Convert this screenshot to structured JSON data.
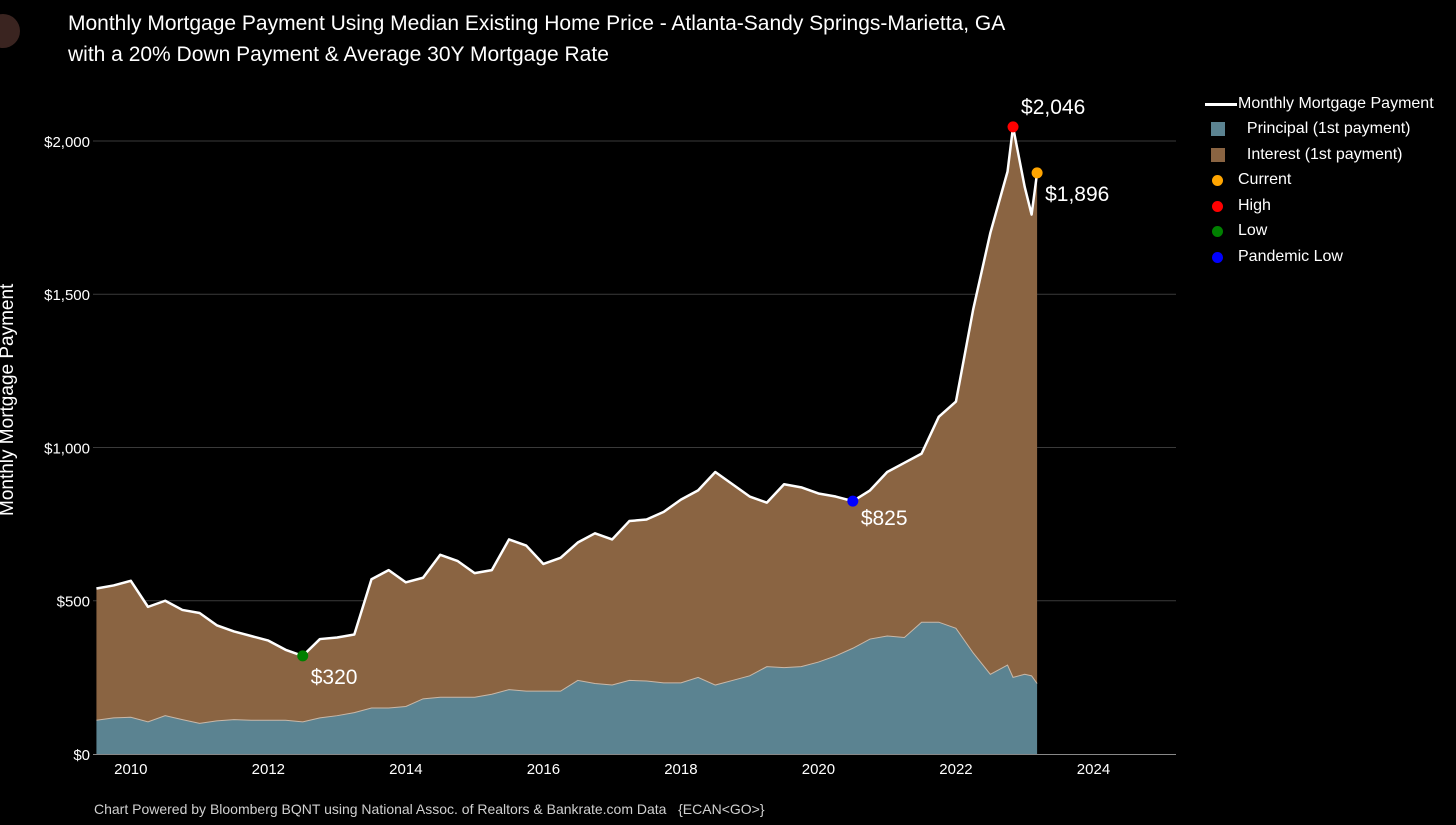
{
  "title_line1": "Monthly Mortgage Payment Using Median Existing Home Price - Atlanta-Sandy Springs-Marietta, GA",
  "title_line2": "with a 20% Down Payment & Average 30Y Mortgage Rate",
  "footer": "Chart Powered by Bloomberg BQNT using National Assoc. of Realtors & Bankrate.com Data   {ECAN<GO>}",
  "colors": {
    "principal": "#5b8391",
    "interest": "#8a6442",
    "payment_line": "#ffffff",
    "current": "#ffa500",
    "high": "#ff0000",
    "low": "#008000",
    "pandemic_low": "#0000ff",
    "grid": "#3a3a3a"
  },
  "legend": [
    {
      "label": "Monthly Mortgage Payment",
      "symbol": "line",
      "color": "#ffffff"
    },
    {
      "label": "  Principal (1st payment)",
      "symbol": "square",
      "color": "#5b8391"
    },
    {
      "label": "  Interest (1st payment)",
      "symbol": "square",
      "color": "#8a6442"
    },
    {
      "label": "Current",
      "symbol": "dot",
      "color": "#ffa500"
    },
    {
      "label": "High",
      "symbol": "dot",
      "color": "#ff0000"
    },
    {
      "label": "Low",
      "symbol": "dot",
      "color": "#008000"
    },
    {
      "label": "Pandemic Low",
      "symbol": "dot",
      "color": "#0000ff"
    }
  ],
  "chart_data": {
    "type": "area",
    "title": "Monthly Mortgage Payment Using Median Existing Home Price - Atlanta-Sandy Springs-Marietta, GA with a 20% Down Payment & Average 30Y Mortgage Rate",
    "xlabel": "",
    "ylabel": "Monthly Mortgage Payment",
    "xlim": [
      2009.45,
      2025.2
    ],
    "ylim": [
      0,
      2150
    ],
    "x_ticks": [
      2010,
      2012,
      2014,
      2016,
      2018,
      2020,
      2022,
      2024
    ],
    "x_tick_labels": [
      "2010",
      "2012",
      "2014",
      "2016",
      "2018",
      "2020",
      "2022",
      "2024"
    ],
    "y_ticks": [
      0,
      500,
      1000,
      1500,
      2000
    ],
    "y_tick_labels": [
      "$0",
      "$500",
      "$1,000",
      "$1,500",
      "$2,000"
    ],
    "grid": true,
    "legend_position": "top-right",
    "x": [
      2009.5,
      2009.75,
      2010.0,
      2010.25,
      2010.5,
      2010.75,
      2011.0,
      2011.25,
      2011.5,
      2011.75,
      2012.0,
      2012.25,
      2012.5,
      2012.75,
      2013.0,
      2013.25,
      2013.5,
      2013.75,
      2014.0,
      2014.25,
      2014.5,
      2014.75,
      2015.0,
      2015.25,
      2015.5,
      2015.75,
      2016.0,
      2016.25,
      2016.5,
      2016.75,
      2017.0,
      2017.25,
      2017.5,
      2017.75,
      2018.0,
      2018.25,
      2018.5,
      2018.75,
      2019.0,
      2019.25,
      2019.5,
      2019.75,
      2020.0,
      2020.25,
      2020.5,
      2020.75,
      2021.0,
      2021.25,
      2021.5,
      2021.75,
      2022.0,
      2022.25,
      2022.5,
      2022.75,
      2022.83,
      2023.0,
      2023.1,
      2023.18
    ],
    "series": [
      {
        "name": "Monthly Mortgage Payment",
        "values": [
          540,
          550,
          565,
          480,
          500,
          470,
          460,
          420,
          400,
          385,
          370,
          340,
          320,
          375,
          380,
          390,
          570,
          600,
          560,
          575,
          650,
          630,
          590,
          600,
          700,
          680,
          620,
          640,
          690,
          720,
          700,
          760,
          765,
          790,
          830,
          860,
          920,
          880,
          840,
          820,
          880,
          870,
          850,
          840,
          825,
          860,
          920,
          950,
          980,
          1100,
          1150,
          1450,
          1700,
          1900,
          2046,
          1850,
          1760,
          1896
        ]
      },
      {
        "name": "Principal (1st payment)",
        "values": [
          110,
          118,
          120,
          105,
          125,
          112,
          100,
          108,
          112,
          110,
          110,
          110,
          105,
          118,
          125,
          135,
          150,
          150,
          155,
          180,
          185,
          185,
          185,
          195,
          210,
          205,
          205,
          205,
          240,
          230,
          225,
          240,
          238,
          232,
          232,
          250,
          225,
          240,
          255,
          285,
          282,
          285,
          300,
          320,
          345,
          375,
          385,
          380,
          430,
          430,
          410,
          330,
          260,
          290,
          250,
          260,
          255,
          230
        ]
      },
      {
        "name": "Interest (1st payment)",
        "values": [
          430,
          432,
          445,
          375,
          375,
          358,
          360,
          312,
          288,
          275,
          260,
          230,
          215,
          257,
          255,
          255,
          420,
          450,
          405,
          395,
          465,
          445,
          405,
          405,
          490,
          475,
          415,
          435,
          450,
          490,
          475,
          520,
          527,
          558,
          598,
          610,
          695,
          640,
          585,
          535,
          598,
          585,
          550,
          520,
          480,
          485,
          535,
          570,
          550,
          670,
          740,
          1120,
          1440,
          1610,
          1796,
          1590,
          1505,
          1666
        ]
      }
    ],
    "markers": [
      {
        "name": "Current",
        "x": 2023.18,
        "y": 1896,
        "label": "$1,896"
      },
      {
        "name": "High",
        "x": 2022.83,
        "y": 2046,
        "label": "$2,046"
      },
      {
        "name": "Low",
        "x": 2012.5,
        "y": 320,
        "label": "$320"
      },
      {
        "name": "Pandemic Low",
        "x": 2020.5,
        "y": 825,
        "label": "$825"
      }
    ]
  }
}
